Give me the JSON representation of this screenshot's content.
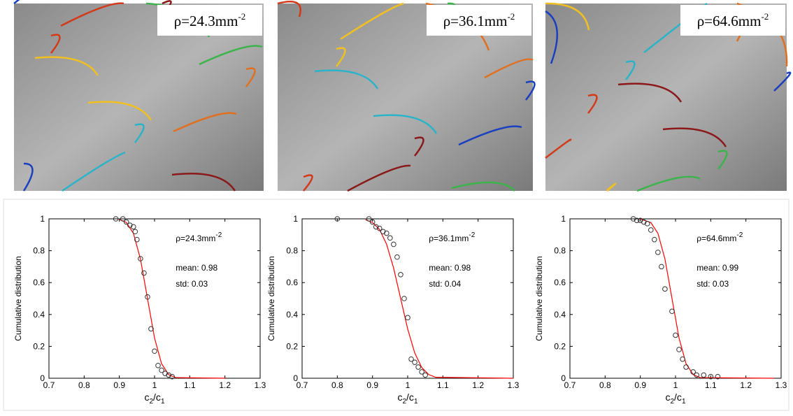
{
  "images": [
    {
      "label": "ρ=24.3mm",
      "label_sup": "-2"
    },
    {
      "label": "ρ=36.1mm",
      "label_sup": "-2"
    },
    {
      "label": "ρ=64.6mm",
      "label_sup": "-2"
    }
  ],
  "chart_data": [
    {
      "type": "scatter",
      "y_label": "Cumulative distribution",
      "x_label": [
        {
          "text": "c"
        },
        {
          "sub": "2"
        },
        {
          "text": "/c"
        },
        {
          "sub": "1"
        }
      ],
      "annotation": {
        "text": "ρ=24.3mm",
        "sup": "-2"
      },
      "mean": "mean: 0.98",
      "std": "std: 0.03",
      "xlim": [
        0.7,
        1.3
      ],
      "ylim": [
        0,
        1
      ],
      "xticks": [
        0.7,
        0.8,
        0.9,
        1,
        1.1,
        1.2,
        1.3
      ],
      "yticks": [
        0,
        0.2,
        0.4,
        0.6,
        0.8,
        1
      ],
      "points": {
        "color": "#333333",
        "x": [
          0.89,
          0.91,
          0.92,
          0.93,
          0.94,
          0.945,
          0.95,
          0.96,
          0.97,
          0.98,
          0.99,
          1.0,
          1.01,
          1.02,
          1.03,
          1.04,
          1.05
        ],
        "values": [
          1,
          1,
          0.98,
          0.96,
          0.95,
          0.92,
          0.87,
          0.75,
          0.66,
          0.51,
          0.31,
          0.17,
          0.08,
          0.05,
          0.03,
          0.02,
          0.01
        ]
      },
      "fit": {
        "color": "#ff0000",
        "x": [
          0.9,
          0.92,
          0.94,
          0.96,
          0.98,
          1.0,
          1.02,
          1.04,
          1.06,
          1.2
        ],
        "values": [
          0.996,
          0.977,
          0.909,
          0.748,
          0.5,
          0.252,
          0.091,
          0.023,
          0.004,
          0
        ]
      }
    },
    {
      "type": "scatter",
      "y_label": "Cumulative distribution",
      "x_label": [
        {
          "text": "c"
        },
        {
          "sub": "2"
        },
        {
          "text": "/c"
        },
        {
          "sub": "1"
        }
      ],
      "annotation": {
        "text": "ρ=36.1mm",
        "sup": "-2"
      },
      "mean": "mean: 0.98",
      "std": "std: 0.04",
      "xlim": [
        0.7,
        1.3
      ],
      "ylim": [
        0,
        1
      ],
      "xticks": [
        0.7,
        0.8,
        0.9,
        1,
        1.1,
        1.2,
        1.3
      ],
      "yticks": [
        0,
        0.2,
        0.4,
        0.6,
        0.8,
        1
      ],
      "points": {
        "color": "#333333",
        "x": [
          0.8,
          0.89,
          0.9,
          0.91,
          0.92,
          0.93,
          0.94,
          0.95,
          0.96,
          0.97,
          0.98,
          0.99,
          1.0,
          1.01,
          1.02,
          1.03,
          1.04,
          1.05
        ],
        "values": [
          1,
          1,
          0.98,
          0.95,
          0.94,
          0.92,
          0.91,
          0.88,
          0.84,
          0.76,
          0.65,
          0.5,
          0.38,
          0.12,
          0.1,
          0.07,
          0.04,
          0.02
        ]
      },
      "fit": {
        "color": "#ff0000",
        "x": [
          0.88,
          0.9,
          0.92,
          0.94,
          0.96,
          0.98,
          1.0,
          1.02,
          1.04,
          1.06,
          1.08,
          1.3
        ],
        "values": [
          0.994,
          0.977,
          0.933,
          0.841,
          0.691,
          0.5,
          0.309,
          0.159,
          0.067,
          0.023,
          0.006,
          0
        ]
      }
    },
    {
      "type": "scatter",
      "y_label": "Cumulative distribution",
      "x_label": [
        {
          "text": "c"
        },
        {
          "sub": "2"
        },
        {
          "text": "/c"
        },
        {
          "sub": "1"
        }
      ],
      "annotation": {
        "text": "ρ=64.6mm",
        "sup": "-2"
      },
      "mean": "mean: 0.99",
      "std": "std: 0.03",
      "xlim": [
        0.7,
        1.3
      ],
      "ylim": [
        0,
        1
      ],
      "xticks": [
        0.7,
        0.8,
        0.9,
        1,
        1.1,
        1.2,
        1.3
      ],
      "yticks": [
        0,
        0.2,
        0.4,
        0.6,
        0.8,
        1
      ],
      "points": {
        "color": "#333333",
        "x": [
          0.88,
          0.89,
          0.9,
          0.91,
          0.92,
          0.93,
          0.94,
          0.95,
          0.96,
          0.97,
          0.99,
          1.0,
          1.01,
          1.02,
          1.03,
          1.05,
          1.06,
          1.08,
          1.1,
          1.12
        ],
        "values": [
          1,
          0.99,
          0.99,
          0.98,
          0.97,
          0.93,
          0.87,
          0.79,
          0.7,
          0.56,
          0.42,
          0.27,
          0.18,
          0.12,
          0.07,
          0.04,
          0.02,
          0.02,
          0.01,
          0.01
        ]
      },
      "fit": {
        "color": "#ff0000",
        "x": [
          0.9,
          0.93,
          0.95,
          0.97,
          0.99,
          1.01,
          1.03,
          1.05,
          1.07,
          1.28
        ],
        "values": [
          0.999,
          0.977,
          0.909,
          0.748,
          0.5,
          0.252,
          0.091,
          0.023,
          0.004,
          0
        ]
      }
    }
  ]
}
